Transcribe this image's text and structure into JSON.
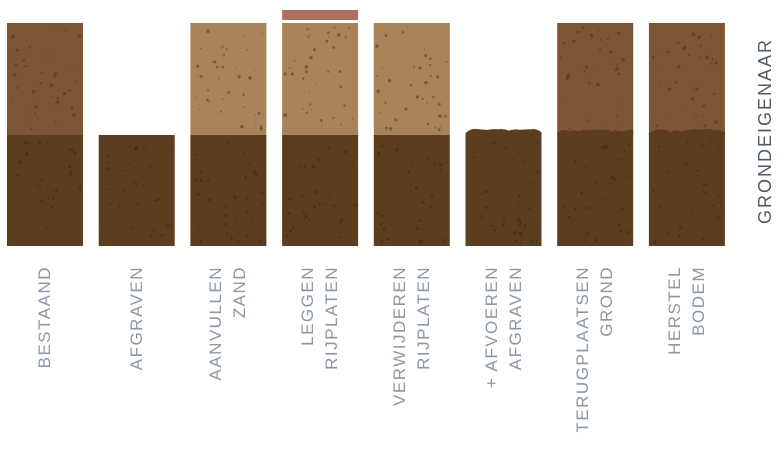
{
  "columns": [
    {
      "lines": [
        "BESTAAND"
      ],
      "top_layer": "brown",
      "subsoil_level": "full",
      "plate": false,
      "edge": "flat"
    },
    {
      "lines": [
        "AFGRAVEN"
      ],
      "top_layer": "none",
      "subsoil_level": "full",
      "plate": false,
      "edge": "flat"
    },
    {
      "lines": [
        "ZAND",
        "AANVULLEN"
      ],
      "top_layer": "sand",
      "subsoil_level": "full",
      "plate": false,
      "edge": "flat"
    },
    {
      "lines": [
        "RIJPLATEN",
        "LEGGEN"
      ],
      "top_layer": "sand",
      "subsoil_level": "full",
      "plate": true,
      "edge": "flat"
    },
    {
      "lines": [
        "RIJPLATEN",
        "VERWIJDEREN"
      ],
      "top_layer": "sand",
      "subsoil_level": "full",
      "plate": false,
      "edge": "flat"
    },
    {
      "lines": [
        "AFGRAVEN",
        "+ AFVOEREN"
      ],
      "top_layer": "none",
      "subsoil_level": "raised",
      "plate": false,
      "edge": "wavy"
    },
    {
      "lines": [
        "GROND",
        "TERUGPLAATSEN"
      ],
      "top_layer": "brown",
      "subsoil_level": "raised",
      "plate": false,
      "edge": "wavy"
    },
    {
      "lines": [
        "BODEM",
        "HERSTEL"
      ],
      "top_layer": "brown",
      "subsoil_level": "raised",
      "plate": false,
      "edge": "wavy"
    }
  ],
  "side_label": "GRONDEIGENAAR",
  "colors": {
    "subsoil": "#5c3d1e",
    "topsoil": "#7d5535",
    "sand": "#a88258",
    "plate": "#b06f5e",
    "speckle": "#3e2813",
    "label": "#8b98a3",
    "side_label": "#4e5a64"
  }
}
